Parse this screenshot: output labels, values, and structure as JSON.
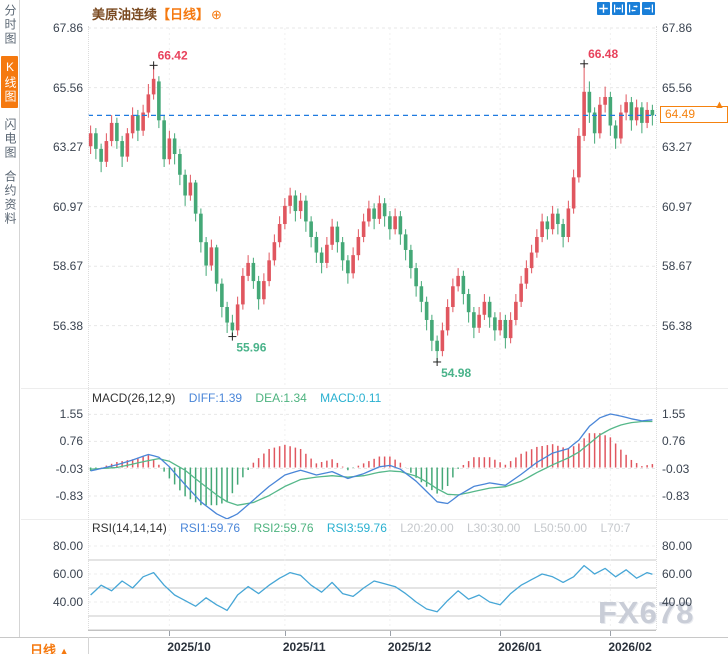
{
  "titlebar": {
    "symbol": "美原油连续",
    "period_tag": "【日线】",
    "add_icon": "⊕"
  },
  "toolbar": {
    "icons": [
      "pan",
      "zoom-x-in",
      "zoom-x-out",
      "exit-chart"
    ]
  },
  "sidebar": {
    "items": [
      {
        "label": "分时图",
        "active": false
      },
      {
        "label": "K线图",
        "active": true
      },
      {
        "label": "闪电图",
        "active": false
      },
      {
        "label": "合约资料",
        "active": false
      }
    ]
  },
  "colors": {
    "up": "#e0565f",
    "down": "#44a877",
    "accent_blue": "#1f7ae0",
    "accent_orange": "#f5790f",
    "diff": "#4a86d8",
    "dea": "#56b88a",
    "rsi": "#46a6d6",
    "ann_high": "#e8425c",
    "ann_low": "#4ab38a"
  },
  "price_chart": {
    "y_axis": [
      "67.86",
      "65.56",
      "63.27",
      "60.97",
      "58.67",
      "56.38"
    ],
    "y_values": [
      67.86,
      65.56,
      63.27,
      60.97,
      58.67,
      56.38
    ]
  },
  "macd_header": {
    "name": "MACD(26,12,9)",
    "diff": "DIFF:1.39",
    "dea": "DEA:1.34",
    "macd": "MACD:0.11"
  },
  "macd_axis": {
    "labels": [
      "1.55",
      "0.76",
      "-0.03",
      "-0.83"
    ],
    "values": [
      1.55,
      0.76,
      -0.03,
      -0.83
    ]
  },
  "rsi_header": {
    "name": "RSI(14,14,14)",
    "rsi1": "RSI1:59.76",
    "rsi2": "RSI2:59.76",
    "rsi3": "RSI3:59.76",
    "l20": "L20:20.00",
    "l30": "L30:30.00",
    "l50": "L50:50.00",
    "l70": "L70:7"
  },
  "rsi_axis": {
    "labels": [
      "80.00",
      "60.00",
      "40.00"
    ],
    "values": [
      80,
      60,
      40
    ]
  },
  "x_axis": {
    "labels": [
      "2025/10",
      "2025/11",
      "2025/12",
      "2026/01",
      "2026/02"
    ]
  },
  "price_tag": {
    "value": "64.49"
  },
  "bottom_bar": {
    "period_label": "日线",
    "arrow": "▲"
  },
  "watermark": "FX678",
  "chart_data": {
    "type": "candlestick",
    "symbol": "美原油连续",
    "period": "日线",
    "ylim": [
      54.9,
      67.86
    ],
    "y_ticks": [
      67.86,
      65.56,
      63.27,
      60.97,
      58.67,
      56.38
    ],
    "x_tick_labels": [
      "2025/10",
      "2025/11",
      "2025/12",
      "2026/01",
      "2026/02"
    ],
    "x_tick_candle_index": [
      15,
      37,
      57,
      78,
      99
    ],
    "last_price": 64.49,
    "candle_format": [
      "open",
      "close",
      "low",
      "high"
    ],
    "candles": [
      [
        63.3,
        63.8,
        63.0,
        64.1
      ],
      [
        63.8,
        63.2,
        62.8,
        64.0
      ],
      [
        63.2,
        62.7,
        62.3,
        63.4
      ],
      [
        62.7,
        63.5,
        62.5,
        63.8
      ],
      [
        63.5,
        64.2,
        63.3,
        64.5
      ],
      [
        64.2,
        63.5,
        63.2,
        64.4
      ],
      [
        63.5,
        62.9,
        62.5,
        63.7
      ],
      [
        62.9,
        63.8,
        62.7,
        64.0
      ],
      [
        63.8,
        64.5,
        63.6,
        64.8
      ],
      [
        64.5,
        63.9,
        63.5,
        64.7
      ],
      [
        63.9,
        64.6,
        63.7,
        64.9
      ],
      [
        64.6,
        65.3,
        64.4,
        65.7
      ],
      [
        65.3,
        65.9,
        65.1,
        66.42
      ],
      [
        65.8,
        64.3,
        64.0,
        66.0
      ],
      [
        64.3,
        62.8,
        62.5,
        64.5
      ],
      [
        62.8,
        63.6,
        62.6,
        63.9
      ],
      [
        63.6,
        63.0,
        62.6,
        63.8
      ],
      [
        63.0,
        62.2,
        61.8,
        63.2
      ],
      [
        62.2,
        61.4,
        61.0,
        62.4
      ],
      [
        61.4,
        61.9,
        61.2,
        62.2
      ],
      [
        61.9,
        60.7,
        60.4,
        62.0
      ],
      [
        60.7,
        59.6,
        59.2,
        60.9
      ],
      [
        59.6,
        58.7,
        58.3,
        59.8
      ],
      [
        58.7,
        59.4,
        58.5,
        59.7
      ],
      [
        59.4,
        58.0,
        57.7,
        59.5
      ],
      [
        58.0,
        57.1,
        56.7,
        58.2
      ],
      [
        57.1,
        56.5,
        56.1,
        57.3
      ],
      [
        56.5,
        56.2,
        55.96,
        56.8
      ],
      [
        56.2,
        57.2,
        56.0,
        57.5
      ],
      [
        57.2,
        58.3,
        57.0,
        58.6
      ],
      [
        58.3,
        58.8,
        58.1,
        59.1
      ],
      [
        58.8,
        58.1,
        57.8,
        59.0
      ],
      [
        58.1,
        57.4,
        57.0,
        58.3
      ],
      [
        57.4,
        58.1,
        57.2,
        58.4
      ],
      [
        58.1,
        58.9,
        57.9,
        59.2
      ],
      [
        58.9,
        59.6,
        58.7,
        59.9
      ],
      [
        59.6,
        60.3,
        59.4,
        60.6
      ],
      [
        60.3,
        61.0,
        60.1,
        61.3
      ],
      [
        61.0,
        61.4,
        60.7,
        61.7
      ],
      [
        61.4,
        60.8,
        60.4,
        61.6
      ],
      [
        60.8,
        61.2,
        60.5,
        61.5
      ],
      [
        61.2,
        60.4,
        60.0,
        61.4
      ],
      [
        60.4,
        59.8,
        59.4,
        60.6
      ],
      [
        59.8,
        59.2,
        58.8,
        60.0
      ],
      [
        59.2,
        58.8,
        58.4,
        59.4
      ],
      [
        58.8,
        59.5,
        58.6,
        59.8
      ],
      [
        59.5,
        60.2,
        59.3,
        60.5
      ],
      [
        60.2,
        59.6,
        59.2,
        60.4
      ],
      [
        59.6,
        58.9,
        58.5,
        59.8
      ],
      [
        58.9,
        58.4,
        58.0,
        59.1
      ],
      [
        58.4,
        59.1,
        58.2,
        59.4
      ],
      [
        59.1,
        59.8,
        58.9,
        60.1
      ],
      [
        59.8,
        60.4,
        59.6,
        60.7
      ],
      [
        60.4,
        60.9,
        60.2,
        61.2
      ],
      [
        60.9,
        60.5,
        60.1,
        61.1
      ],
      [
        60.5,
        61.1,
        60.3,
        61.4
      ],
      [
        61.1,
        60.6,
        60.2,
        61.3
      ],
      [
        60.6,
        60.1,
        59.7,
        60.8
      ],
      [
        60.1,
        60.6,
        59.9,
        60.9
      ],
      [
        60.6,
        59.9,
        59.5,
        60.8
      ],
      [
        59.9,
        59.3,
        58.9,
        60.1
      ],
      [
        59.3,
        58.6,
        58.2,
        59.5
      ],
      [
        58.6,
        57.9,
        57.5,
        58.8
      ],
      [
        57.9,
        57.3,
        56.9,
        58.1
      ],
      [
        57.3,
        56.6,
        56.2,
        57.5
      ],
      [
        56.6,
        55.8,
        55.4,
        56.8
      ],
      [
        55.8,
        55.4,
        54.98,
        56.0
      ],
      [
        55.4,
        56.2,
        55.2,
        56.5
      ],
      [
        56.2,
        57.1,
        56.0,
        57.4
      ],
      [
        57.1,
        57.9,
        56.9,
        58.2
      ],
      [
        57.9,
        58.3,
        57.7,
        58.6
      ],
      [
        58.3,
        57.6,
        57.2,
        58.5
      ],
      [
        57.6,
        56.9,
        56.5,
        57.8
      ],
      [
        56.9,
        56.3,
        55.9,
        57.1
      ],
      [
        56.3,
        56.8,
        56.1,
        57.1
      ],
      [
        56.8,
        57.3,
        56.6,
        57.6
      ],
      [
        57.3,
        56.7,
        56.3,
        57.5
      ],
      [
        56.7,
        56.2,
        55.8,
        56.9
      ],
      [
        56.2,
        56.6,
        56.0,
        56.9
      ],
      [
        56.6,
        55.9,
        55.5,
        56.8
      ],
      [
        55.9,
        56.6,
        55.7,
        56.9
      ],
      [
        56.6,
        57.3,
        56.4,
        57.6
      ],
      [
        57.3,
        58.0,
        57.1,
        58.3
      ],
      [
        58.0,
        58.6,
        57.8,
        58.9
      ],
      [
        58.6,
        59.2,
        58.4,
        59.5
      ],
      [
        59.2,
        59.8,
        59.0,
        60.1
      ],
      [
        59.8,
        60.4,
        59.6,
        60.7
      ],
      [
        60.4,
        60.1,
        59.7,
        60.6
      ],
      [
        60.1,
        60.7,
        59.9,
        61.0
      ],
      [
        60.7,
        60.3,
        59.9,
        60.9
      ],
      [
        60.3,
        59.8,
        59.4,
        60.5
      ],
      [
        59.8,
        60.9,
        59.6,
        61.2
      ],
      [
        60.9,
        62.1,
        60.7,
        62.4
      ],
      [
        62.1,
        63.7,
        61.9,
        64.0
      ],
      [
        63.7,
        65.4,
        63.5,
        66.48
      ],
      [
        65.4,
        64.6,
        64.2,
        65.8
      ],
      [
        64.6,
        63.8,
        63.4,
        64.8
      ],
      [
        63.8,
        64.9,
        63.6,
        65.2
      ],
      [
        64.9,
        65.2,
        64.6,
        65.6
      ],
      [
        65.2,
        64.1,
        63.7,
        65.4
      ],
      [
        64.1,
        63.6,
        63.2,
        64.3
      ],
      [
        63.6,
        64.6,
        63.4,
        64.9
      ],
      [
        64.6,
        65.0,
        64.3,
        65.3
      ],
      [
        65.0,
        64.3,
        63.9,
        65.2
      ],
      [
        64.3,
        64.8,
        64.1,
        65.1
      ],
      [
        64.8,
        64.2,
        63.8,
        65.0
      ],
      [
        64.2,
        64.7,
        64.0,
        65.0
      ],
      [
        64.7,
        64.49,
        64.1,
        64.9
      ]
    ],
    "annotations": [
      {
        "text": "66.42",
        "candle": 12,
        "price": 66.42,
        "kind": "high"
      },
      {
        "text": "55.96",
        "candle": 27,
        "price": 55.96,
        "kind": "low"
      },
      {
        "text": "54.98",
        "candle": 66,
        "price": 54.98,
        "kind": "low"
      },
      {
        "text": "66.48",
        "candle": 94,
        "price": 66.48,
        "kind": "high"
      }
    ],
    "macd": {
      "params": [
        26,
        12,
        9
      ],
      "diff": 1.39,
      "dea": 1.34,
      "macd": 0.11,
      "y_ticks": [
        1.55,
        0.76,
        -0.03,
        -0.83
      ],
      "diff_anchors": [
        [
          0,
          -0.1
        ],
        [
          5,
          0.08
        ],
        [
          8,
          0.22
        ],
        [
          11,
          0.38
        ],
        [
          13,
          0.3
        ],
        [
          15,
          0.02
        ],
        [
          18,
          -0.5
        ],
        [
          21,
          -1.0
        ],
        [
          24,
          -1.35
        ],
        [
          26,
          -1.5
        ],
        [
          28,
          -1.35
        ],
        [
          31,
          -0.95
        ],
        [
          34,
          -0.55
        ],
        [
          37,
          -0.22
        ],
        [
          40,
          -0.08
        ],
        [
          43,
          -0.22
        ],
        [
          46,
          -0.12
        ],
        [
          49,
          -0.32
        ],
        [
          52,
          -0.18
        ],
        [
          55,
          0.02
        ],
        [
          57,
          0.06
        ],
        [
          59,
          -0.05
        ],
        [
          62,
          -0.4
        ],
        [
          64,
          -0.7
        ],
        [
          66,
          -1.0
        ],
        [
          68,
          -1.05
        ],
        [
          70,
          -0.82
        ],
        [
          73,
          -0.55
        ],
        [
          76,
          -0.45
        ],
        [
          79,
          -0.52
        ],
        [
          82,
          -0.2
        ],
        [
          85,
          0.15
        ],
        [
          88,
          0.42
        ],
        [
          91,
          0.55
        ],
        [
          93,
          0.8
        ],
        [
          95,
          1.2
        ],
        [
          97,
          1.45
        ],
        [
          99,
          1.56
        ],
        [
          101,
          1.5
        ],
        [
          103,
          1.42
        ],
        [
          105,
          1.36
        ],
        [
          107,
          1.39
        ]
      ],
      "dea_anchors": [
        [
          0,
          -0.05
        ],
        [
          5,
          0.0
        ],
        [
          8,
          0.1
        ],
        [
          11,
          0.2
        ],
        [
          13,
          0.26
        ],
        [
          15,
          0.18
        ],
        [
          18,
          -0.08
        ],
        [
          21,
          -0.45
        ],
        [
          24,
          -0.8
        ],
        [
          26,
          -1.0
        ],
        [
          28,
          -1.1
        ],
        [
          31,
          -1.02
        ],
        [
          34,
          -0.82
        ],
        [
          37,
          -0.55
        ],
        [
          40,
          -0.35
        ],
        [
          43,
          -0.28
        ],
        [
          46,
          -0.24
        ],
        [
          49,
          -0.28
        ],
        [
          52,
          -0.24
        ],
        [
          55,
          -0.14
        ],
        [
          57,
          -0.1
        ],
        [
          59,
          -0.12
        ],
        [
          62,
          -0.25
        ],
        [
          64,
          -0.42
        ],
        [
          66,
          -0.62
        ],
        [
          68,
          -0.78
        ],
        [
          70,
          -0.8
        ],
        [
          73,
          -0.7
        ],
        [
          76,
          -0.6
        ],
        [
          79,
          -0.56
        ],
        [
          82,
          -0.4
        ],
        [
          85,
          -0.15
        ],
        [
          88,
          0.08
        ],
        [
          91,
          0.28
        ],
        [
          93,
          0.45
        ],
        [
          95,
          0.7
        ],
        [
          97,
          0.95
        ],
        [
          99,
          1.12
        ],
        [
          101,
          1.24
        ],
        [
          103,
          1.31
        ],
        [
          105,
          1.34
        ],
        [
          107,
          1.34
        ]
      ]
    },
    "rsi": {
      "params": [
        14,
        14,
        14
      ],
      "rsi1": 59.76,
      "rsi2": 59.76,
      "rsi3": 59.76,
      "y_ticks": [
        80,
        60,
        40
      ],
      "levels": [
        70,
        50,
        30,
        20
      ],
      "anchors": [
        [
          0,
          45
        ],
        [
          2,
          52
        ],
        [
          4,
          48
        ],
        [
          6,
          55
        ],
        [
          8,
          50
        ],
        [
          10,
          58
        ],
        [
          12,
          61
        ],
        [
          14,
          52
        ],
        [
          16,
          45
        ],
        [
          18,
          41
        ],
        [
          20,
          37
        ],
        [
          22,
          43
        ],
        [
          24,
          38
        ],
        [
          26,
          34
        ],
        [
          28,
          45
        ],
        [
          30,
          51
        ],
        [
          32,
          46
        ],
        [
          34,
          52
        ],
        [
          36,
          57
        ],
        [
          38,
          61
        ],
        [
          40,
          59
        ],
        [
          42,
          52
        ],
        [
          44,
          47
        ],
        [
          46,
          54
        ],
        [
          48,
          46
        ],
        [
          50,
          44
        ],
        [
          52,
          50
        ],
        [
          54,
          55
        ],
        [
          56,
          53
        ],
        [
          58,
          51
        ],
        [
          60,
          46
        ],
        [
          62,
          40
        ],
        [
          64,
          35
        ],
        [
          66,
          33
        ],
        [
          68,
          41
        ],
        [
          70,
          48
        ],
        [
          72,
          42
        ],
        [
          74,
          45
        ],
        [
          76,
          40
        ],
        [
          78,
          38
        ],
        [
          80,
          46
        ],
        [
          82,
          52
        ],
        [
          84,
          56
        ],
        [
          86,
          60
        ],
        [
          88,
          58
        ],
        [
          90,
          54
        ],
        [
          92,
          58
        ],
        [
          94,
          66
        ],
        [
          96,
          60
        ],
        [
          98,
          64
        ],
        [
          100,
          58
        ],
        [
          102,
          63
        ],
        [
          104,
          57
        ],
        [
          106,
          61
        ],
        [
          107,
          59.76
        ]
      ]
    }
  }
}
